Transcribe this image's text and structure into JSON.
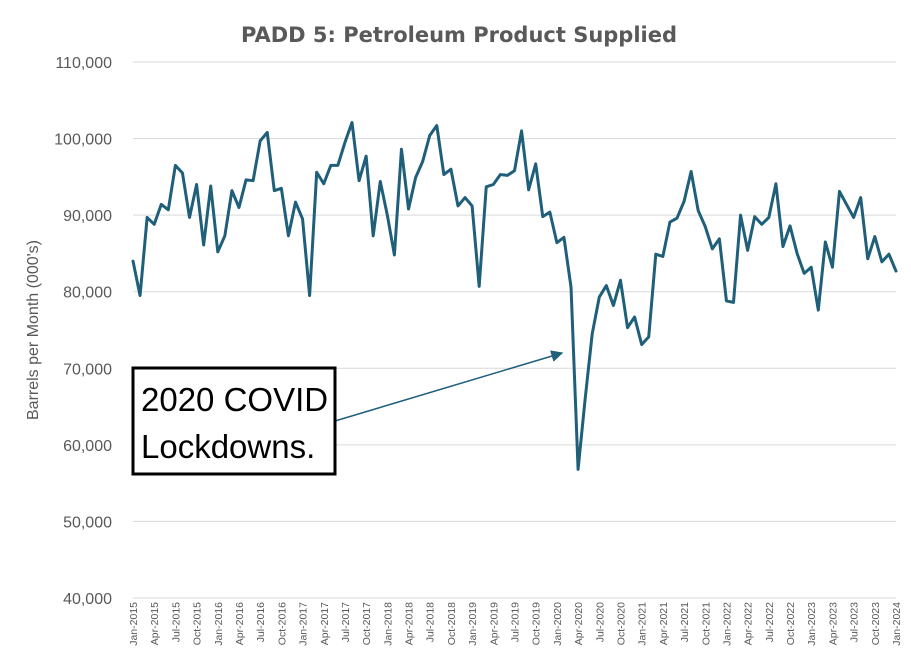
{
  "chart_data": {
    "type": "line",
    "title": "PADD 5: Petroleum Product Supplied",
    "xlabel": "",
    "ylabel": "Barrels per Month (000's)",
    "ylim": [
      40000,
      110000
    ],
    "yticks": [
      40000,
      50000,
      60000,
      70000,
      80000,
      90000,
      100000,
      110000
    ],
    "ytick_labels": [
      "40,000",
      "50,000",
      "60,000",
      "70,000",
      "80,000",
      "90,000",
      "100,000",
      "110,000"
    ],
    "xtick_labels": [
      "Jan-2015",
      "Apr-2015",
      "Jul-2015",
      "Oct-2015",
      "Jan-2016",
      "Apr-2016",
      "Jul-2016",
      "Oct-2016",
      "Jan-2017",
      "Apr-2017",
      "Jul-2017",
      "Oct-2017",
      "Jan-2018",
      "Apr-2018",
      "Jul-2018",
      "Oct-2018",
      "Jan-2019",
      "Apr-2019",
      "Jul-2019",
      "Oct-2019",
      "Jan-2020",
      "Apr-2020",
      "Jul-2020",
      "Oct-2020",
      "Jan-2021",
      "Apr-2021",
      "Jul-2021",
      "Oct-2021",
      "Jan-2022",
      "Apr-2022",
      "Jul-2022",
      "Oct-2022",
      "Jan-2023",
      "Apr-2023",
      "Jul-2023",
      "Oct-2023",
      "Jan-2024"
    ],
    "grid": true,
    "legend": "none",
    "line_color": "#1f5f7a",
    "x": [
      "Jan-2015",
      "Feb-2015",
      "Mar-2015",
      "Apr-2015",
      "May-2015",
      "Jun-2015",
      "Jul-2015",
      "Aug-2015",
      "Sep-2015",
      "Oct-2015",
      "Nov-2015",
      "Dec-2015",
      "Jan-2016",
      "Feb-2016",
      "Mar-2016",
      "Apr-2016",
      "May-2016",
      "Jun-2016",
      "Jul-2016",
      "Aug-2016",
      "Sep-2016",
      "Oct-2016",
      "Nov-2016",
      "Dec-2016",
      "Jan-2017",
      "Feb-2017",
      "Mar-2017",
      "Apr-2017",
      "May-2017",
      "Jun-2017",
      "Jul-2017",
      "Aug-2017",
      "Sep-2017",
      "Oct-2017",
      "Nov-2017",
      "Dec-2017",
      "Jan-2018",
      "Feb-2018",
      "Mar-2018",
      "Apr-2018",
      "May-2018",
      "Jun-2018",
      "Jul-2018",
      "Aug-2018",
      "Sep-2018",
      "Oct-2018",
      "Nov-2018",
      "Dec-2018",
      "Jan-2019",
      "Feb-2019",
      "Mar-2019",
      "Apr-2019",
      "May-2019",
      "Jun-2019",
      "Jul-2019",
      "Aug-2019",
      "Sep-2019",
      "Oct-2019",
      "Nov-2019",
      "Dec-2019",
      "Jan-2020",
      "Feb-2020",
      "Mar-2020",
      "Apr-2020",
      "May-2020",
      "Jun-2020",
      "Jul-2020",
      "Aug-2020",
      "Sep-2020",
      "Oct-2020",
      "Nov-2020",
      "Dec-2020",
      "Jan-2021",
      "Feb-2021",
      "Mar-2021",
      "Apr-2021",
      "May-2021",
      "Jun-2021",
      "Jul-2021",
      "Aug-2021",
      "Sep-2021",
      "Oct-2021",
      "Nov-2021",
      "Dec-2021",
      "Jan-2022",
      "Feb-2022",
      "Mar-2022",
      "Apr-2022",
      "May-2022",
      "Jun-2022",
      "Jul-2022",
      "Aug-2022",
      "Sep-2022",
      "Oct-2022",
      "Nov-2022",
      "Dec-2022",
      "Jan-2023",
      "Feb-2023",
      "Mar-2023",
      "Apr-2023",
      "May-2023",
      "Jun-2023",
      "Jul-2023",
      "Aug-2023",
      "Sep-2023",
      "Oct-2023",
      "Nov-2023",
      "Dec-2023",
      "Jan-2024"
    ],
    "series": [
      {
        "values": [
          84000,
          79500,
          89700,
          88800,
          91400,
          90700,
          96500,
          95500,
          89700,
          94000,
          86100,
          93800,
          85200,
          87300,
          93200,
          91000,
          94600,
          94500,
          99700,
          100800,
          93200,
          93500,
          87300,
          91700,
          89500,
          79500,
          95600,
          94100,
          96500,
          96500,
          99500,
          102100,
          94500,
          97700,
          87300,
          94400,
          90000,
          84800,
          98600,
          90800,
          94900,
          97000,
          100400,
          101700,
          95300,
          96000,
          91200,
          92300,
          91200,
          80700,
          93700,
          94000,
          95300,
          95200,
          95800,
          101000,
          93300,
          96700,
          89800,
          90400,
          86400,
          87100,
          80600,
          56800,
          66000,
          74500,
          79300,
          80800,
          78200,
          81500,
          75300,
          76700,
          73100,
          74100,
          84900,
          84600,
          89100,
          89600,
          91800,
          95700,
          90600,
          88500,
          85600,
          86900,
          78800,
          78600,
          90000,
          85400,
          89800,
          88800,
          89700,
          94100,
          85900,
          88600,
          85000,
          82400,
          83200,
          77600,
          86500,
          83200,
          93100,
          91400,
          89700,
          92300,
          84300,
          87200,
          83900,
          84900,
          82700
        ]
      }
    ]
  },
  "annotation": {
    "lines": [
      "2020 COVID",
      "Lockdowns."
    ],
    "target_x": "Apr-2020",
    "target_y": 72000
  }
}
